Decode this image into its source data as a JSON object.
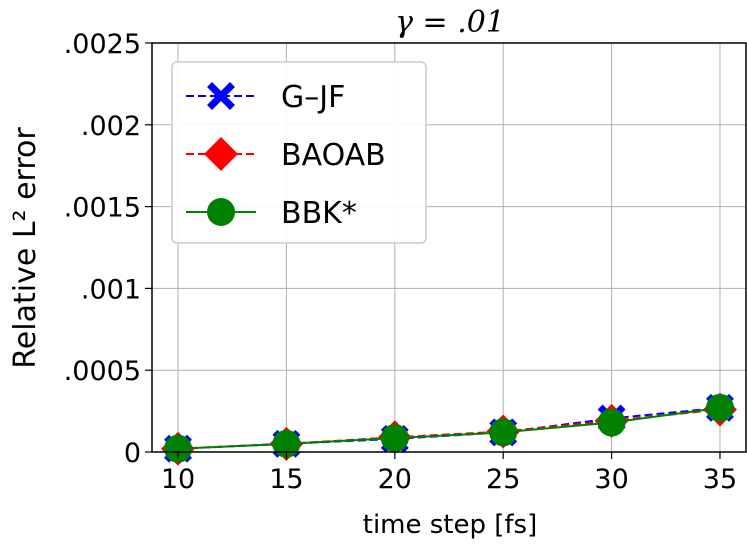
{
  "chart_data": {
    "type": "line",
    "title": "γ = .01",
    "xlabel": "time step [fs]",
    "ylabel": "Relative L² error",
    "x": [
      10,
      15,
      20,
      25,
      30,
      35
    ],
    "xticks": [
      "10",
      "15",
      "20",
      "25",
      "30",
      "35"
    ],
    "yticks": [
      {
        "value": 0,
        "label": "0"
      },
      {
        "value": 0.0005,
        "label": ".0005"
      },
      {
        "value": 0.001,
        "label": ".001"
      },
      {
        "value": 0.0015,
        "label": ".0015"
      },
      {
        "value": 0.002,
        "label": ".002"
      },
      {
        "value": 0.0025,
        "label": ".0025"
      }
    ],
    "xlim": [
      8.8,
      36.2
    ],
    "ylim": [
      0,
      0.0025
    ],
    "grid": true,
    "legend_position": "top-left",
    "series": [
      {
        "name": "G–JF",
        "color": "#0000ff",
        "marker": "x",
        "line": "dashed",
        "values": [
          2e-05,
          5e-05,
          8e-05,
          0.00012,
          0.000205,
          0.00027
        ]
      },
      {
        "name": "BAOAB",
        "color": "#ff0000",
        "marker": "diamond",
        "line": "dashed",
        "values": [
          2e-05,
          5e-05,
          9e-05,
          0.000125,
          0.00019,
          0.00026
        ]
      },
      {
        "name": "BBK*",
        "color": "#008000",
        "marker": "circle",
        "line": "solid",
        "values": [
          2e-05,
          5e-05,
          8.5e-05,
          0.00012,
          0.00018,
          0.00027
        ]
      }
    ]
  }
}
